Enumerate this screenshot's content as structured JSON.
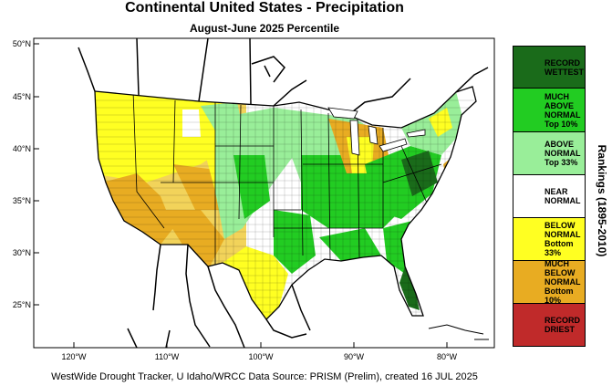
{
  "header": {
    "title": "Continental United States - Precipitation",
    "subtitle": "August-June 2025 Percentile"
  },
  "map": {
    "lat_labels": [
      "50°N",
      "45°N",
      "40°N",
      "35°N",
      "30°N",
      "25°N"
    ],
    "lon_labels": [
      "120°W",
      "110°W",
      "100°W",
      "90°W",
      "80°W"
    ]
  },
  "legend": {
    "axis_label": "Rankings (1895-2010)",
    "items": [
      {
        "label": "RECORD\nWETTEST",
        "color": "#1a6b1a"
      },
      {
        "label": "MUCH\nABOVE\nNORMAL\nTop 10%",
        "color": "#22cc22"
      },
      {
        "label": "ABOVE\nNORMAL\nTop 33%",
        "color": "#99ee99"
      },
      {
        "label": "NEAR\nNORMAL",
        "color": "#ffffff"
      },
      {
        "label": "BELOW\nNORMAL\nBottom 33%",
        "color": "#ffff22"
      },
      {
        "label": "MUCH\nBELOW\nNORMAL\nBottom 10%",
        "color": "#e8ac22"
      },
      {
        "label": "RECORD\nDRIEST",
        "color": "#c02a2a"
      }
    ]
  },
  "footer": {
    "credit": "WestWide Drought Tracker, U Idaho/WRCC Data Source: PRISM (Prelim), created 16 JUL 2025"
  }
}
